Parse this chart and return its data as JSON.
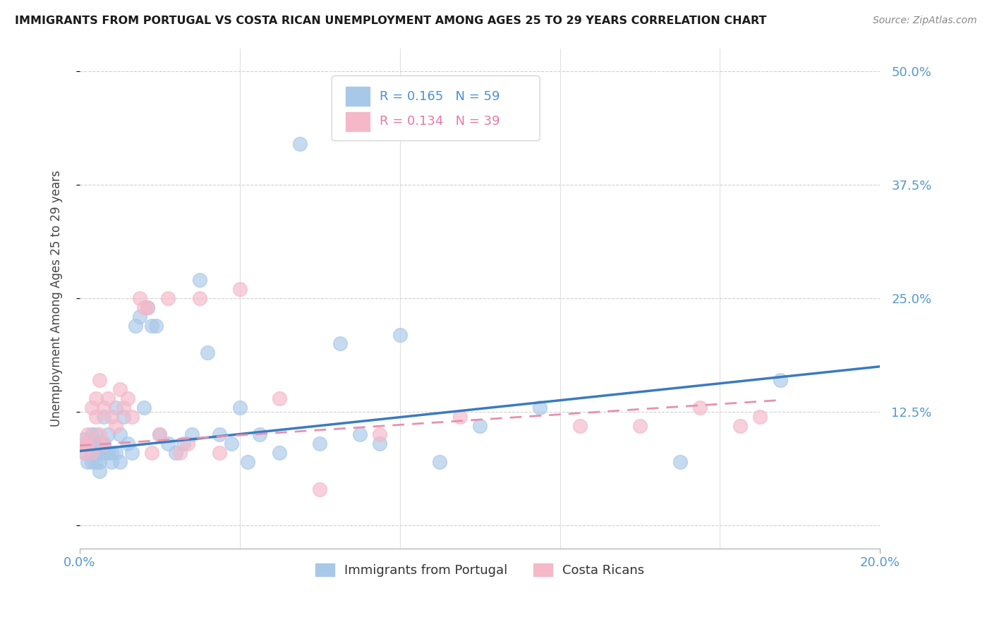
{
  "title": "IMMIGRANTS FROM PORTUGAL VS COSTA RICAN UNEMPLOYMENT AMONG AGES 25 TO 29 YEARS CORRELATION CHART",
  "source": "Source: ZipAtlas.com",
  "ylabel": "Unemployment Among Ages 25 to 29 years",
  "legend_label_blue": "Immigrants from Portugal",
  "legend_label_pink": "Costa Ricans",
  "legend_r1": "0.165",
  "legend_n1": "59",
  "legend_r2": "0.134",
  "legend_n2": "39",
  "color_blue": "#a8c8e8",
  "color_pink": "#f4b8c8",
  "color_blue_line": "#3a7bbf",
  "color_pink_line": "#e890b0",
  "color_blue_text": "#4a90d9",
  "color_axis": "#5599cc",
  "background": "#ffffff",
  "xmin": 0.0,
  "xmax": 0.2,
  "ymin": -0.025,
  "ymax": 0.525,
  "blue_x": [
    0.001,
    0.001,
    0.002,
    0.002,
    0.003,
    0.003,
    0.003,
    0.004,
    0.004,
    0.004,
    0.004,
    0.005,
    0.005,
    0.005,
    0.005,
    0.006,
    0.006,
    0.006,
    0.007,
    0.007,
    0.008,
    0.008,
    0.009,
    0.009,
    0.01,
    0.01,
    0.011,
    0.012,
    0.013,
    0.014,
    0.015,
    0.016,
    0.017,
    0.018,
    0.019,
    0.02,
    0.022,
    0.024,
    0.026,
    0.028,
    0.03,
    0.032,
    0.035,
    0.038,
    0.04,
    0.042,
    0.045,
    0.05,
    0.055,
    0.06,
    0.065,
    0.07,
    0.075,
    0.08,
    0.09,
    0.1,
    0.115,
    0.15,
    0.175
  ],
  "blue_y": [
    0.095,
    0.08,
    0.09,
    0.07,
    0.1,
    0.08,
    0.07,
    0.1,
    0.09,
    0.08,
    0.07,
    0.09,
    0.08,
    0.07,
    0.06,
    0.12,
    0.09,
    0.08,
    0.1,
    0.08,
    0.08,
    0.07,
    0.13,
    0.08,
    0.1,
    0.07,
    0.12,
    0.09,
    0.08,
    0.22,
    0.23,
    0.13,
    0.24,
    0.22,
    0.22,
    0.1,
    0.09,
    0.08,
    0.09,
    0.1,
    0.27,
    0.19,
    0.1,
    0.09,
    0.13,
    0.07,
    0.1,
    0.08,
    0.42,
    0.09,
    0.2,
    0.1,
    0.09,
    0.21,
    0.07,
    0.11,
    0.13,
    0.07,
    0.16
  ],
  "pink_x": [
    0.001,
    0.001,
    0.002,
    0.002,
    0.003,
    0.003,
    0.004,
    0.004,
    0.005,
    0.005,
    0.006,
    0.006,
    0.007,
    0.008,
    0.009,
    0.01,
    0.011,
    0.012,
    0.013,
    0.015,
    0.016,
    0.017,
    0.018,
    0.02,
    0.022,
    0.025,
    0.027,
    0.03,
    0.035,
    0.04,
    0.05,
    0.06,
    0.075,
    0.095,
    0.125,
    0.14,
    0.155,
    0.165,
    0.17
  ],
  "pink_y": [
    0.09,
    0.08,
    0.1,
    0.09,
    0.13,
    0.08,
    0.14,
    0.12,
    0.1,
    0.16,
    0.13,
    0.09,
    0.14,
    0.12,
    0.11,
    0.15,
    0.13,
    0.14,
    0.12,
    0.25,
    0.24,
    0.24,
    0.08,
    0.1,
    0.25,
    0.08,
    0.09,
    0.25,
    0.08,
    0.26,
    0.14,
    0.04,
    0.1,
    0.12,
    0.11,
    0.11,
    0.13,
    0.11,
    0.12
  ],
  "blue_trend": [
    0.0,
    0.2,
    0.082,
    0.175
  ],
  "pink_trend": [
    0.0,
    0.175,
    0.088,
    0.138
  ]
}
